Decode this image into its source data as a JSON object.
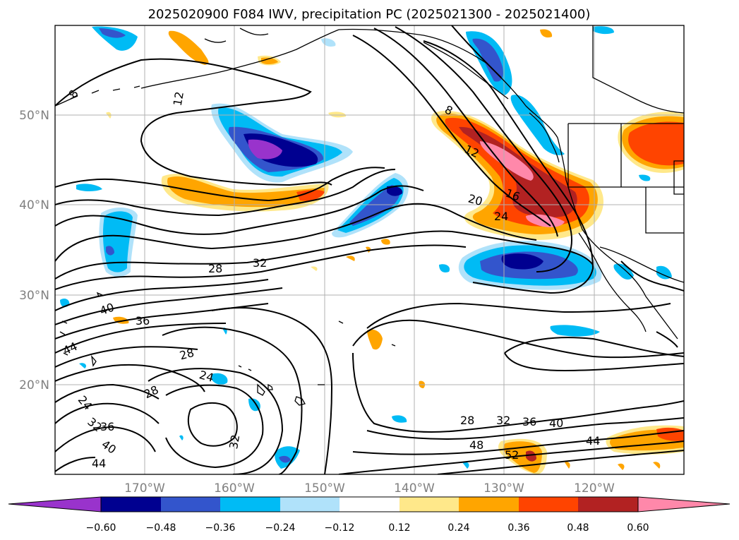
{
  "title": "2025020900 F084 IWV, precipitation PC (2025021300 - 2025021400)",
  "lat_labels": [
    "50°N",
    "40°N",
    "30°N",
    "20°N"
  ],
  "lon_labels": [
    "170°W",
    "160°W",
    "150°W",
    "140°W",
    "130°W",
    "120°W"
  ],
  "colorbar": {
    "ticks": [
      "−0.60",
      "−0.48",
      "−0.36",
      "−0.24",
      "−0.12",
      "0.12",
      "0.24",
      "0.36",
      "0.48",
      "0.60"
    ],
    "colors": [
      "#9933cc",
      "#000090",
      "#3355cc",
      "#00bbf5",
      "#b0e2fa",
      "#ffffff",
      "#ffe88a",
      "#ffa500",
      "#ff4400",
      "#b22222",
      "#ff88aa"
    ]
  },
  "contour_labels": [
    "8",
    "12",
    "8",
    "12",
    "16",
    "20",
    "24",
    "28",
    "32",
    "36",
    "40",
    "44",
    "28",
    "24",
    "28",
    "24",
    "32",
    "36",
    "40",
    "44",
    "32",
    "28",
    "32",
    "36",
    "40",
    "44",
    "48",
    "52"
  ]
}
